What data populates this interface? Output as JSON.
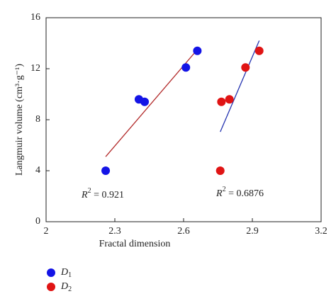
{
  "chart_data": {
    "type": "scatter",
    "x_label": "Fractal dimension",
    "y_label": "Langmuir volume (cm³·g⁻¹)",
    "xlim": [
      2,
      3.2
    ],
    "xticks": [
      2,
      2.3,
      2.6,
      2.9,
      3.2
    ],
    "ylim": [
      0,
      16
    ],
    "yticks": [
      0,
      4,
      8,
      12,
      16
    ],
    "legend": "bottom-left",
    "series": [
      {
        "name": "D",
        "name_sub": "1",
        "color": "#1414e6",
        "x": [
          2.26,
          2.405,
          2.43,
          2.61,
          2.66
        ],
        "values": [
          4.0,
          9.6,
          9.4,
          12.1,
          13.4
        ],
        "fit": {
          "color": "#b22a2a",
          "x": [
            2.26,
            2.66
          ],
          "y": [
            5.1,
            13.5
          ]
        }
      },
      {
        "name": "D",
        "name_sub": "2",
        "color": "#e01414",
        "x": [
          2.76,
          2.765,
          2.8,
          2.87,
          2.93
        ],
        "values": [
          4.0,
          9.4,
          9.6,
          12.1,
          13.4
        ],
        "fit": {
          "color": "#2433b0",
          "x": [
            2.76,
            2.93
          ],
          "y": [
            7.05,
            14.2
          ]
        }
      }
    ],
    "annotations": [
      {
        "label": "R",
        "sup": "2",
        "text": " = 0.921"
      },
      {
        "label": "R",
        "sup": "2",
        "text": " = 0.6876"
      }
    ]
  }
}
